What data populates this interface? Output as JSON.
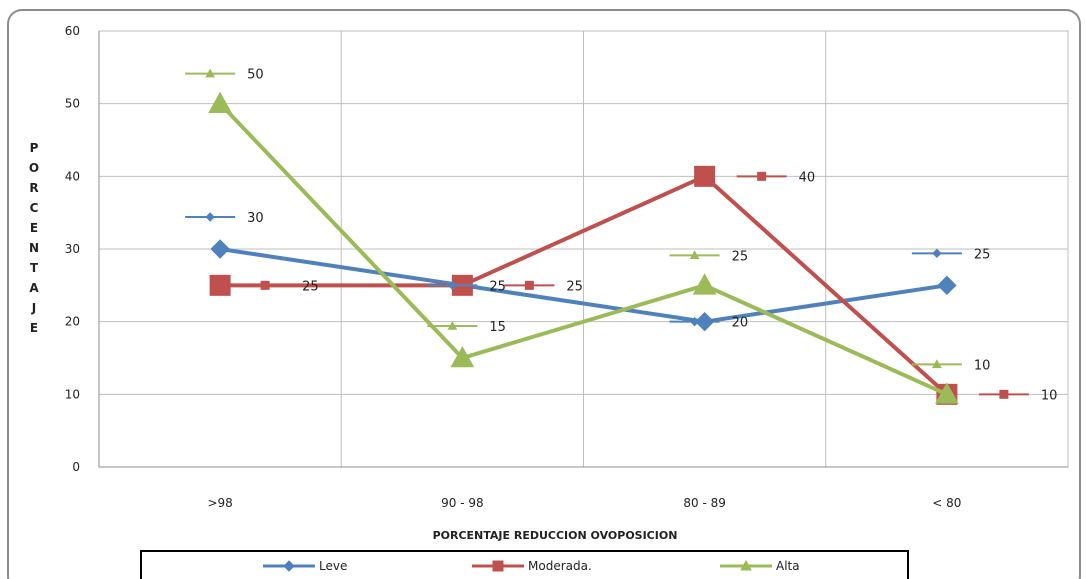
{
  "chart_data": {
    "type": "line",
    "title": "",
    "xlabel": "PORCENTAJE REDUCCION OVOPOSICION",
    "ylabel": "PORCENTAJE",
    "categories": [
      ">98",
      "90 - 98",
      "80 - 89",
      "< 80"
    ],
    "ylim": [
      0,
      60
    ],
    "yticks": [
      0,
      10,
      20,
      30,
      40,
      50,
      60
    ],
    "grid": true,
    "legend_position": "bottom",
    "series": [
      {
        "name": "Leve",
        "values": [
          30,
          25,
          20,
          25
        ],
        "color": "#4f81bd",
        "marker": "diamond"
      },
      {
        "name": "Moderada.",
        "values": [
          25,
          25,
          40,
          10
        ],
        "color": "#c0504d",
        "marker": "square"
      },
      {
        "name": "Alta",
        "values": [
          50,
          15,
          25,
          10
        ],
        "color": "#9bbb59",
        "marker": "triangle"
      }
    ]
  }
}
